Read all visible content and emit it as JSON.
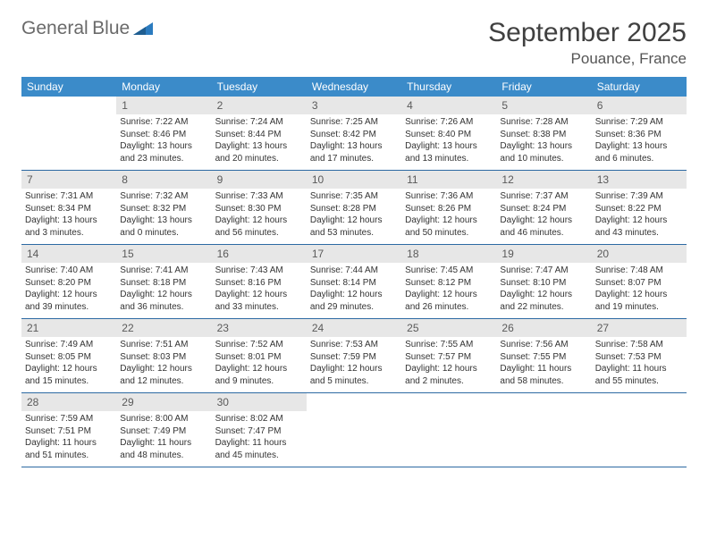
{
  "logo": {
    "line1": "General",
    "line2": "Blue"
  },
  "header": {
    "month_title": "September 2025",
    "location": "Pouance, France"
  },
  "colors": {
    "header_bg": "#3b8bc9",
    "header_text": "#ffffff",
    "daynum_bg": "#e7e7e7",
    "daynum_text": "#5a5a5a",
    "week_border": "#2d6aa3",
    "body_text": "#333333",
    "page_bg": "#ffffff"
  },
  "typography": {
    "month_title_size": 30,
    "location_size": 17,
    "weekday_size": 12,
    "daynum_size": 12,
    "body_size": 10
  },
  "weekdays": [
    "Sunday",
    "Monday",
    "Tuesday",
    "Wednesday",
    "Thursday",
    "Friday",
    "Saturday"
  ],
  "weeks": [
    [
      {
        "num": "",
        "lines": []
      },
      {
        "num": "1",
        "lines": [
          "Sunrise: 7:22 AM",
          "Sunset: 8:46 PM",
          "Daylight: 13 hours and 23 minutes."
        ]
      },
      {
        "num": "2",
        "lines": [
          "Sunrise: 7:24 AM",
          "Sunset: 8:44 PM",
          "Daylight: 13 hours and 20 minutes."
        ]
      },
      {
        "num": "3",
        "lines": [
          "Sunrise: 7:25 AM",
          "Sunset: 8:42 PM",
          "Daylight: 13 hours and 17 minutes."
        ]
      },
      {
        "num": "4",
        "lines": [
          "Sunrise: 7:26 AM",
          "Sunset: 8:40 PM",
          "Daylight: 13 hours and 13 minutes."
        ]
      },
      {
        "num": "5",
        "lines": [
          "Sunrise: 7:28 AM",
          "Sunset: 8:38 PM",
          "Daylight: 13 hours and 10 minutes."
        ]
      },
      {
        "num": "6",
        "lines": [
          "Sunrise: 7:29 AM",
          "Sunset: 8:36 PM",
          "Daylight: 13 hours and 6 minutes."
        ]
      }
    ],
    [
      {
        "num": "7",
        "lines": [
          "Sunrise: 7:31 AM",
          "Sunset: 8:34 PM",
          "Daylight: 13 hours and 3 minutes."
        ]
      },
      {
        "num": "8",
        "lines": [
          "Sunrise: 7:32 AM",
          "Sunset: 8:32 PM",
          "Daylight: 13 hours and 0 minutes."
        ]
      },
      {
        "num": "9",
        "lines": [
          "Sunrise: 7:33 AM",
          "Sunset: 8:30 PM",
          "Daylight: 12 hours and 56 minutes."
        ]
      },
      {
        "num": "10",
        "lines": [
          "Sunrise: 7:35 AM",
          "Sunset: 8:28 PM",
          "Daylight: 12 hours and 53 minutes."
        ]
      },
      {
        "num": "11",
        "lines": [
          "Sunrise: 7:36 AM",
          "Sunset: 8:26 PM",
          "Daylight: 12 hours and 50 minutes."
        ]
      },
      {
        "num": "12",
        "lines": [
          "Sunrise: 7:37 AM",
          "Sunset: 8:24 PM",
          "Daylight: 12 hours and 46 minutes."
        ]
      },
      {
        "num": "13",
        "lines": [
          "Sunrise: 7:39 AM",
          "Sunset: 8:22 PM",
          "Daylight: 12 hours and 43 minutes."
        ]
      }
    ],
    [
      {
        "num": "14",
        "lines": [
          "Sunrise: 7:40 AM",
          "Sunset: 8:20 PM",
          "Daylight: 12 hours and 39 minutes."
        ]
      },
      {
        "num": "15",
        "lines": [
          "Sunrise: 7:41 AM",
          "Sunset: 8:18 PM",
          "Daylight: 12 hours and 36 minutes."
        ]
      },
      {
        "num": "16",
        "lines": [
          "Sunrise: 7:43 AM",
          "Sunset: 8:16 PM",
          "Daylight: 12 hours and 33 minutes."
        ]
      },
      {
        "num": "17",
        "lines": [
          "Sunrise: 7:44 AM",
          "Sunset: 8:14 PM",
          "Daylight: 12 hours and 29 minutes."
        ]
      },
      {
        "num": "18",
        "lines": [
          "Sunrise: 7:45 AM",
          "Sunset: 8:12 PM",
          "Daylight: 12 hours and 26 minutes."
        ]
      },
      {
        "num": "19",
        "lines": [
          "Sunrise: 7:47 AM",
          "Sunset: 8:10 PM",
          "Daylight: 12 hours and 22 minutes."
        ]
      },
      {
        "num": "20",
        "lines": [
          "Sunrise: 7:48 AM",
          "Sunset: 8:07 PM",
          "Daylight: 12 hours and 19 minutes."
        ]
      }
    ],
    [
      {
        "num": "21",
        "lines": [
          "Sunrise: 7:49 AM",
          "Sunset: 8:05 PM",
          "Daylight: 12 hours and 15 minutes."
        ]
      },
      {
        "num": "22",
        "lines": [
          "Sunrise: 7:51 AM",
          "Sunset: 8:03 PM",
          "Daylight: 12 hours and 12 minutes."
        ]
      },
      {
        "num": "23",
        "lines": [
          "Sunrise: 7:52 AM",
          "Sunset: 8:01 PM",
          "Daylight: 12 hours and 9 minutes."
        ]
      },
      {
        "num": "24",
        "lines": [
          "Sunrise: 7:53 AM",
          "Sunset: 7:59 PM",
          "Daylight: 12 hours and 5 minutes."
        ]
      },
      {
        "num": "25",
        "lines": [
          "Sunrise: 7:55 AM",
          "Sunset: 7:57 PM",
          "Daylight: 12 hours and 2 minutes."
        ]
      },
      {
        "num": "26",
        "lines": [
          "Sunrise: 7:56 AM",
          "Sunset: 7:55 PM",
          "Daylight: 11 hours and 58 minutes."
        ]
      },
      {
        "num": "27",
        "lines": [
          "Sunrise: 7:58 AM",
          "Sunset: 7:53 PM",
          "Daylight: 11 hours and 55 minutes."
        ]
      }
    ],
    [
      {
        "num": "28",
        "lines": [
          "Sunrise: 7:59 AM",
          "Sunset: 7:51 PM",
          "Daylight: 11 hours and 51 minutes."
        ]
      },
      {
        "num": "29",
        "lines": [
          "Sunrise: 8:00 AM",
          "Sunset: 7:49 PM",
          "Daylight: 11 hours and 48 minutes."
        ]
      },
      {
        "num": "30",
        "lines": [
          "Sunrise: 8:02 AM",
          "Sunset: 7:47 PM",
          "Daylight: 11 hours and 45 minutes."
        ]
      },
      {
        "num": "",
        "lines": []
      },
      {
        "num": "",
        "lines": []
      },
      {
        "num": "",
        "lines": []
      },
      {
        "num": "",
        "lines": []
      }
    ]
  ]
}
